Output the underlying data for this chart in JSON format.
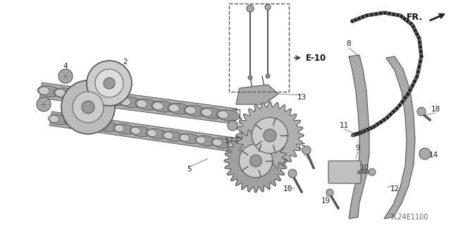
{
  "background_color": "#ffffff",
  "diagram_code": "TL24E1100",
  "line_color": "#444444",
  "text_color": "#222222",
  "label_fontsize": 7.5,
  "code_fontsize": 7,
  "fr_fontsize": 9,
  "figsize": [
    6.4,
    3.19
  ],
  "dpi": 100,
  "cam_color": "#888888",
  "cam_dark": "#555555",
  "cam_light": "#cccccc",
  "chain_color": "#333333",
  "guide_color": "#777777"
}
